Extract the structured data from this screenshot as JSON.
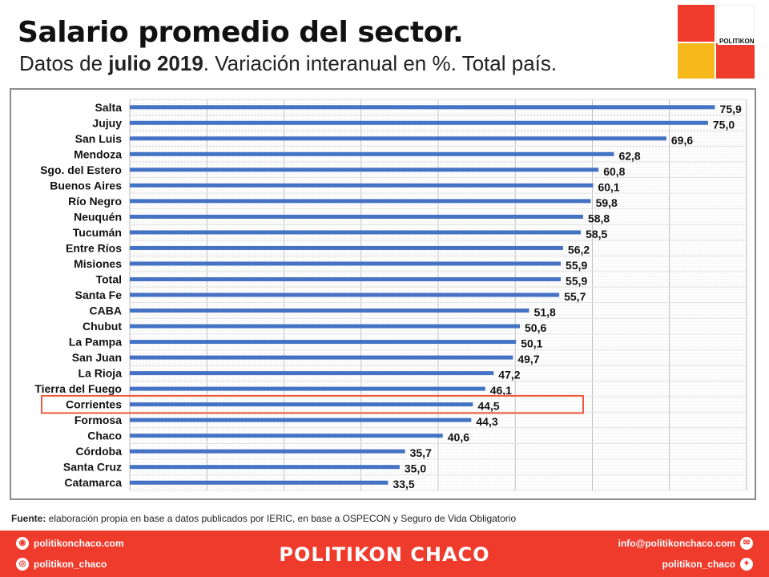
{
  "header": {
    "title": "Salario promedio del sector.",
    "subtitle_pre": "Datos de ",
    "subtitle_bold": "julio 2019",
    "subtitle_post": ". Variación interanual en %. Total país."
  },
  "logo": {
    "brand": "POLITIKON"
  },
  "chart_data": {
    "type": "bar",
    "orientation": "horizontal",
    "categories": [
      "Salta",
      "Jujuy",
      "San Luis",
      "Mendoza",
      "Sgo. del Estero",
      "Buenos Aires",
      "Río Negro",
      "Neuquén",
      "Tucumán",
      "Entre Ríos",
      "Misiones",
      "Total",
      "Santa Fe",
      "CABA",
      "Chubut",
      "La Pampa",
      "San Juan",
      "La Rioja",
      "Tierra del Fuego",
      "Corrientes",
      "Formosa",
      "Chaco",
      "Córdoba",
      "Santa Cruz",
      "Catamarca"
    ],
    "values": [
      75.9,
      75.0,
      69.6,
      62.8,
      60.8,
      60.1,
      59.8,
      58.8,
      58.5,
      56.2,
      55.9,
      55.9,
      55.7,
      51.8,
      50.6,
      50.1,
      49.7,
      47.2,
      46.1,
      44.5,
      44.3,
      40.6,
      35.7,
      35.0,
      33.5
    ],
    "value_labels": [
      "75,9",
      "75,0",
      "69,6",
      "62,8",
      "60,8",
      "60,1",
      "59,8",
      "58,8",
      "58,5",
      "56,2",
      "55,9",
      "55,9",
      "55,7",
      "51,8",
      "50,6",
      "50,1",
      "49,7",
      "47,2",
      "46,1",
      "44,5",
      "44,3",
      "40,6",
      "35,7",
      "35,0",
      "33,5"
    ],
    "xlim": [
      0,
      80
    ],
    "grid": true,
    "highlight": "Corrientes",
    "bar_color": "#4472c4",
    "highlight_color": "#ef5a3c"
  },
  "source": {
    "label": "Fuente:",
    "text": " elaboración propia en base a datos publicados por IERIC, en base a OSPECON y Seguro de Vida Obligatorio"
  },
  "footer": {
    "web": "politikonchaco.com",
    "instagram": "politikon_chaco",
    "brand": "POLITIKON CHACO",
    "email": "info@politikonchaco.com",
    "twitter": "politikon_chaco",
    "accent": "#ef3b2c"
  }
}
